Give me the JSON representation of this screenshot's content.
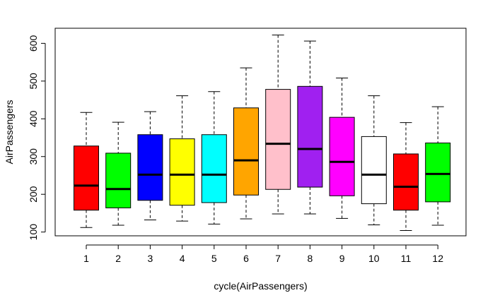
{
  "chart_data": {
    "type": "boxplot",
    "xlabel": "cycle(AirPassengers)",
    "ylabel": "AirPassengers",
    "ylim": [
      90,
      640
    ],
    "yticks": [
      100,
      200,
      300,
      400,
      500,
      600
    ],
    "categories": [
      "1",
      "2",
      "3",
      "4",
      "5",
      "6",
      "7",
      "8",
      "9",
      "10",
      "11",
      "12"
    ],
    "boxes": [
      {
        "label": "1",
        "min": 112,
        "q1": 158,
        "median": 223,
        "q3": 328,
        "max": 417,
        "color": "#ff0000"
      },
      {
        "label": "2",
        "min": 118,
        "q1": 164,
        "median": 214,
        "q3": 309,
        "max": 391,
        "color": "#00ff00"
      },
      {
        "label": "3",
        "min": 132,
        "q1": 184,
        "median": 252,
        "q3": 358,
        "max": 419,
        "color": "#0000ff"
      },
      {
        "label": "4",
        "min": 129,
        "q1": 171,
        "median": 252,
        "q3": 347,
        "max": 461,
        "color": "#ffff00"
      },
      {
        "label": "5",
        "min": 121,
        "q1": 178,
        "median": 252,
        "q3": 358,
        "max": 472,
        "color": "#00ffff"
      },
      {
        "label": "6",
        "min": 135,
        "q1": 198,
        "median": 290,
        "q3": 429,
        "max": 535,
        "color": "#ffa500"
      },
      {
        "label": "7",
        "min": 148,
        "q1": 213,
        "median": 334,
        "q3": 478,
        "max": 622,
        "color": "#ffc0cb"
      },
      {
        "label": "8",
        "min": 148,
        "q1": 219,
        "median": 320,
        "q3": 486,
        "max": 606,
        "color": "#a020f0"
      },
      {
        "label": "9",
        "min": 136,
        "q1": 196,
        "median": 286,
        "q3": 404,
        "max": 508,
        "color": "#ff00ff"
      },
      {
        "label": "10",
        "min": 119,
        "q1": 175,
        "median": 252,
        "q3": 353,
        "max": 461,
        "color": "#ffffff"
      },
      {
        "label": "11",
        "min": 104,
        "q1": 158,
        "median": 220,
        "q3": 307,
        "max": 390,
        "color": "#ff0000"
      },
      {
        "label": "12",
        "min": 118,
        "q1": 180,
        "median": 254,
        "q3": 336,
        "max": 432,
        "color": "#00ff00"
      }
    ]
  }
}
